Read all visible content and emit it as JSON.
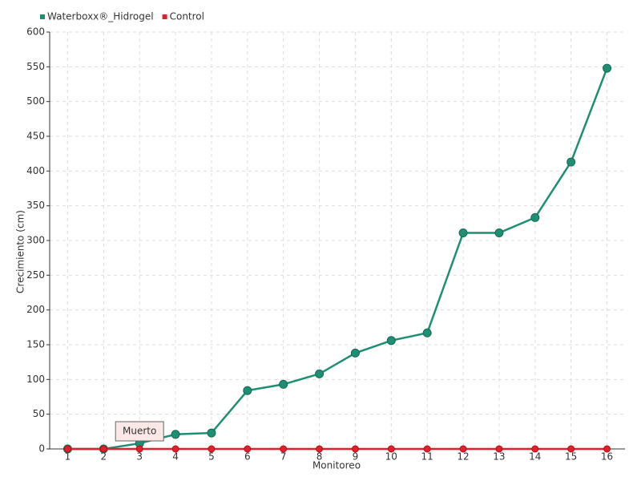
{
  "chart_data": {
    "type": "line",
    "categories": [
      "1",
      "2",
      "3",
      "4",
      "5",
      "6",
      "7",
      "8",
      "9",
      "10",
      "11",
      "12",
      "13",
      "14",
      "15",
      "16"
    ],
    "series": [
      {
        "name": "Waterboxx®_Hidrogel",
        "color": "#1f8f74",
        "values": [
          0,
          0,
          8,
          21,
          23,
          84,
          93,
          108,
          138,
          156,
          167,
          311,
          311,
          333,
          413,
          548
        ]
      },
      {
        "name": "Control",
        "color": "#e0202a",
        "values": [
          0,
          0,
          0,
          0,
          0,
          0,
          0,
          0,
          0,
          0,
          0,
          0,
          0,
          0,
          0,
          0
        ]
      }
    ],
    "ylim": [
      0,
      600
    ],
    "yticks": [
      0,
      50,
      100,
      150,
      200,
      250,
      300,
      350,
      400,
      450,
      500,
      550,
      600
    ],
    "ylabel": "Crecimiento (cm)",
    "xlabel": "Monitoreo",
    "annotation": "Muerto",
    "grid": true,
    "legend": "top-left"
  }
}
